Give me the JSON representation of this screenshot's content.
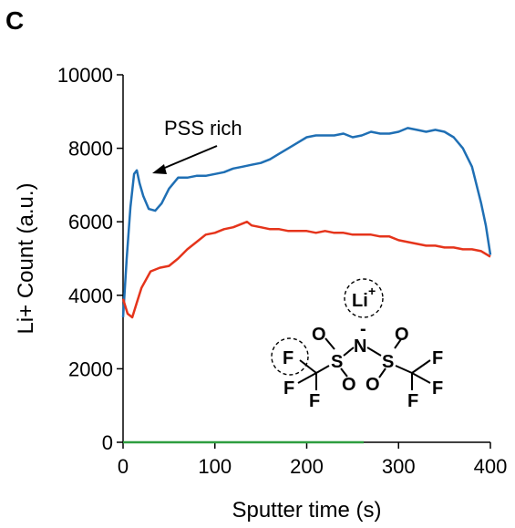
{
  "panel_label": "C",
  "chart_data": {
    "type": "line",
    "title": "",
    "xlabel": "Sputter time (s)",
    "ylabel": "Li+ Count (a.u.)",
    "xlim": [
      0,
      400
    ],
    "ylim": [
      0,
      10000
    ],
    "xticks": [
      0,
      100,
      200,
      300,
      400
    ],
    "yticks": [
      0,
      2000,
      4000,
      6000,
      8000,
      10000
    ],
    "grid": false,
    "series": [
      {
        "color": "#1f6fb4",
        "x": [
          0,
          4,
          8,
          12,
          15,
          18,
          22,
          28,
          35,
          42,
          50,
          60,
          70,
          80,
          90,
          100,
          110,
          120,
          130,
          140,
          150,
          160,
          170,
          180,
          190,
          200,
          210,
          220,
          230,
          240,
          250,
          260,
          270,
          280,
          290,
          300,
          310,
          320,
          330,
          340,
          350,
          360,
          370,
          380,
          390,
          395,
          400
        ],
        "values": [
          3400,
          5000,
          6400,
          7300,
          7400,
          7050,
          6700,
          6350,
          6300,
          6500,
          6900,
          7200,
          7200,
          7250,
          7250,
          7300,
          7350,
          7450,
          7500,
          7550,
          7600,
          7700,
          7850,
          8000,
          8150,
          8300,
          8350,
          8350,
          8350,
          8400,
          8300,
          8350,
          8450,
          8400,
          8400,
          8450,
          8550,
          8500,
          8450,
          8500,
          8450,
          8300,
          8000,
          7500,
          6500,
          5900,
          5100
        ]
      },
      {
        "color": "#e5341b",
        "x": [
          0,
          5,
          10,
          15,
          20,
          30,
          40,
          50,
          60,
          70,
          80,
          90,
          100,
          110,
          120,
          130,
          135,
          140,
          150,
          160,
          170,
          180,
          190,
          200,
          210,
          220,
          230,
          240,
          250,
          260,
          270,
          280,
          290,
          300,
          310,
          320,
          330,
          340,
          350,
          360,
          370,
          380,
          390,
          400
        ],
        "values": [
          3900,
          3500,
          3400,
          3800,
          4200,
          4650,
          4750,
          4800,
          5000,
          5250,
          5450,
          5650,
          5700,
          5800,
          5850,
          5950,
          6000,
          5900,
          5850,
          5800,
          5800,
          5750,
          5750,
          5750,
          5700,
          5750,
          5700,
          5700,
          5650,
          5650,
          5650,
          5600,
          5600,
          5500,
          5450,
          5400,
          5350,
          5350,
          5300,
          5300,
          5250,
          5250,
          5200,
          5050
        ]
      },
      {
        "color": "#2e9e3f",
        "x": [
          0,
          262
        ],
        "values": [
          0,
          0
        ]
      }
    ],
    "annotations": [
      {
        "text": "PSS rich",
        "arrow_to": {
          "x": 32,
          "y": 7400
        }
      }
    ]
  },
  "chemical_structure": {
    "atoms": {
      "li": "Li",
      "li_charge": "+",
      "n": "N",
      "n_charge": "-",
      "o1": "O",
      "o2": "O",
      "o3": "O",
      "o4": "O",
      "s1": "S",
      "s2": "S",
      "f1": "F",
      "f2": "F",
      "f3": "F",
      "f4": "F",
      "f5": "F",
      "f6": "F"
    }
  }
}
